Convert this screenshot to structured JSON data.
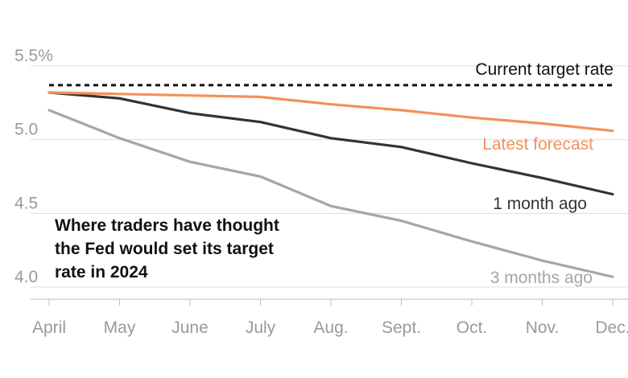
{
  "chart_data": {
    "type": "line",
    "title_lines": [
      "Where traders have thought",
      "the Fed would set its target",
      "rate in 2024"
    ],
    "categories": [
      "April",
      "May",
      "June",
      "July",
      "Aug.",
      "Sept.",
      "Oct.",
      "Nov.",
      "Dec."
    ],
    "y_ticks": [
      {
        "value": 5.5,
        "label": "5.5%"
      },
      {
        "value": 5.0,
        "label": "5.0"
      },
      {
        "value": 4.5,
        "label": "4.5"
      },
      {
        "value": 4.0,
        "label": "4.0"
      }
    ],
    "ylim": [
      3.96,
      5.7
    ],
    "grid": true,
    "reference_line": {
      "value": 5.37,
      "label": "Current target rate",
      "style": "dashed",
      "color": "#111111"
    },
    "series": [
      {
        "name": "Latest forecast",
        "color": "#f4905a",
        "values": [
          5.32,
          5.31,
          5.3,
          5.29,
          5.24,
          5.2,
          5.15,
          5.11,
          5.06
        ]
      },
      {
        "name": "1 month ago",
        "color": "#333333",
        "values": [
          5.32,
          5.28,
          5.18,
          5.12,
          5.01,
          4.95,
          4.84,
          4.74,
          4.63
        ]
      },
      {
        "name": "3 months ago",
        "color": "#a6a6a6",
        "values": [
          5.2,
          5.01,
          4.85,
          4.75,
          4.55,
          4.45,
          4.31,
          4.18,
          4.07
        ]
      }
    ]
  }
}
